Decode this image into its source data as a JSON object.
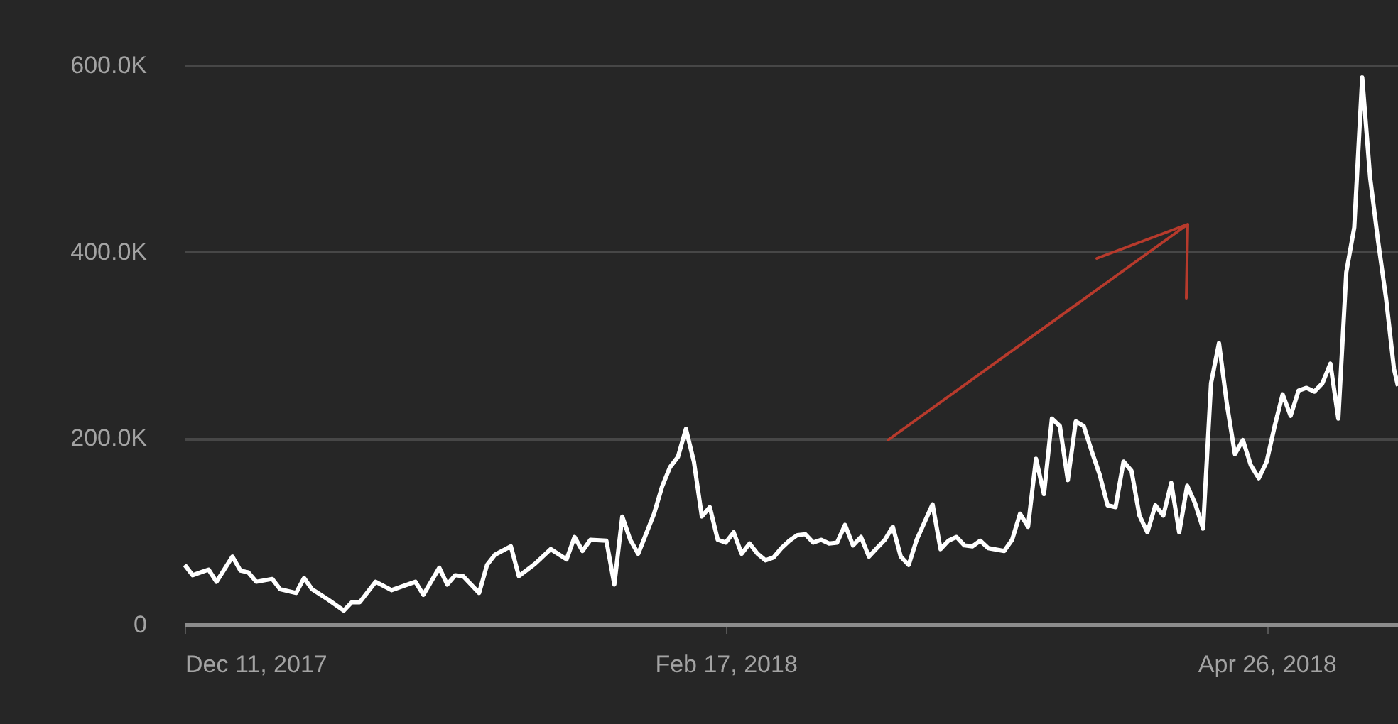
{
  "chart_data": {
    "type": "line",
    "x": [
      "2017-12-11",
      "2017-12-12",
      "2017-12-13",
      "2017-12-14",
      "2017-12-15",
      "2017-12-17",
      "2017-12-18",
      "2017-12-19",
      "2017-12-20",
      "2017-12-22",
      "2017-12-23",
      "2017-12-25",
      "2017-12-26",
      "2017-12-27",
      "2017-12-29",
      "2017-12-31",
      "2018-01-01",
      "2018-01-02",
      "2018-01-04",
      "2018-01-06",
      "2018-01-09",
      "2018-01-10",
      "2018-01-12",
      "2018-01-13",
      "2018-01-14",
      "2018-01-15",
      "2018-01-17",
      "2018-01-18",
      "2018-01-19",
      "2018-01-21",
      "2018-01-22",
      "2018-01-24",
      "2018-01-25",
      "2018-01-26",
      "2018-01-28",
      "2018-01-29",
      "2018-01-30",
      "2018-01-31",
      "2018-02-02",
      "2018-02-03",
      "2018-02-04",
      "2018-02-05",
      "2018-02-06",
      "2018-02-08",
      "2018-02-09",
      "2018-02-10",
      "2018-02-11",
      "2018-02-12",
      "2018-02-13",
      "2018-02-14",
      "2018-02-15",
      "2018-02-16",
      "2018-02-17",
      "2018-02-18",
      "2018-02-19",
      "2018-02-20",
      "2018-02-21",
      "2018-02-22",
      "2018-02-23",
      "2018-02-24",
      "2018-02-25",
      "2018-02-26",
      "2018-02-27",
      "2018-02-28",
      "2018-03-01",
      "2018-03-02",
      "2018-03-03",
      "2018-03-04",
      "2018-03-05",
      "2018-03-06",
      "2018-03-07",
      "2018-03-08",
      "2018-03-09",
      "2018-03-10",
      "2018-03-11",
      "2018-03-12",
      "2018-03-13",
      "2018-03-15",
      "2018-03-16",
      "2018-03-17",
      "2018-03-18",
      "2018-03-19",
      "2018-03-20",
      "2018-03-21",
      "2018-03-22",
      "2018-03-24",
      "2018-03-25",
      "2018-03-26",
      "2018-03-27",
      "2018-03-28",
      "2018-03-29",
      "2018-03-30",
      "2018-03-31",
      "2018-04-01",
      "2018-04-02",
      "2018-04-03",
      "2018-04-04",
      "2018-04-05",
      "2018-04-06",
      "2018-04-07",
      "2018-04-08",
      "2018-04-09",
      "2018-04-10",
      "2018-04-11",
      "2018-04-12",
      "2018-04-13",
      "2018-04-14",
      "2018-04-15",
      "2018-04-16",
      "2018-04-17",
      "2018-04-18",
      "2018-04-19",
      "2018-04-20",
      "2018-04-21",
      "2018-04-22",
      "2018-04-23",
      "2018-04-24",
      "2018-04-25",
      "2018-04-26",
      "2018-04-27",
      "2018-04-28",
      "2018-04-29",
      "2018-04-30",
      "2018-05-01",
      "2018-05-02",
      "2018-05-03",
      "2018-05-04",
      "2018-05-05",
      "2018-05-06",
      "2018-05-07",
      "2018-05-08",
      "2018-05-09",
      "2018-05-10",
      "2018-05-11",
      "2018-05-12",
      "2018-05-12T12:00"
    ],
    "values": [
      64000,
      53000,
      56000,
      59000,
      46000,
      73000,
      58000,
      56000,
      46000,
      49000,
      38000,
      34000,
      50000,
      38000,
      27000,
      15000,
      24000,
      24000,
      46000,
      37000,
      46000,
      32000,
      61000,
      43000,
      53000,
      52000,
      34000,
      64000,
      75000,
      84000,
      52000,
      65000,
      73000,
      81000,
      70000,
      94000,
      79000,
      91000,
      90000,
      43000,
      116000,
      91000,
      76000,
      119000,
      148000,
      169000,
      180000,
      210000,
      175000,
      116000,
      126000,
      91000,
      88000,
      99000,
      76000,
      87000,
      76000,
      69000,
      72000,
      82000,
      90000,
      96000,
      97000,
      88000,
      91000,
      87000,
      88000,
      107000,
      85000,
      94000,
      73000,
      82000,
      91000,
      105000,
      73000,
      64000,
      91000,
      129000,
      81000,
      90000,
      94000,
      85000,
      84000,
      90000,
      82000,
      79000,
      91000,
      119000,
      105000,
      178000,
      140000,
      221000,
      213000,
      155000,
      218000,
      213000,
      186000,
      161000,
      128000,
      126000,
      175000,
      165000,
      117000,
      99000,
      128000,
      117000,
      152000,
      99000,
      149000,
      130000,
      103000,
      259000,
      302000,
      236000,
      183000,
      198000,
      171000,
      157000,
      175000,
      213000,
      247000,
      224000,
      251000,
      254000,
      250000,
      259000,
      280000,
      221000,
      378000,
      426000,
      587000,
      479000,
      411000,
      350000,
      274000,
      256000
    ],
    "color": "#ffffff",
    "xlim": [
      "2017-12-11",
      "2018-05-12T12:00"
    ],
    "xticks": [
      {
        "value": "2017-12-11",
        "label": "Dec 11, 2017"
      },
      {
        "value": "2018-02-17",
        "label": "Feb 17, 2018"
      },
      {
        "value": "2018-04-26",
        "label": "Apr 26, 2018"
      }
    ],
    "ylim": [
      0,
      600000
    ],
    "yticks": [
      {
        "value": 0,
        "label": "0"
      },
      {
        "value": 200000,
        "label": "200.0K"
      },
      {
        "value": 400000,
        "label": "400.0K"
      },
      {
        "value": 600000,
        "label": "600.0K"
      }
    ],
    "grid": "y",
    "marker": "none",
    "line_style": "solid"
  }
}
